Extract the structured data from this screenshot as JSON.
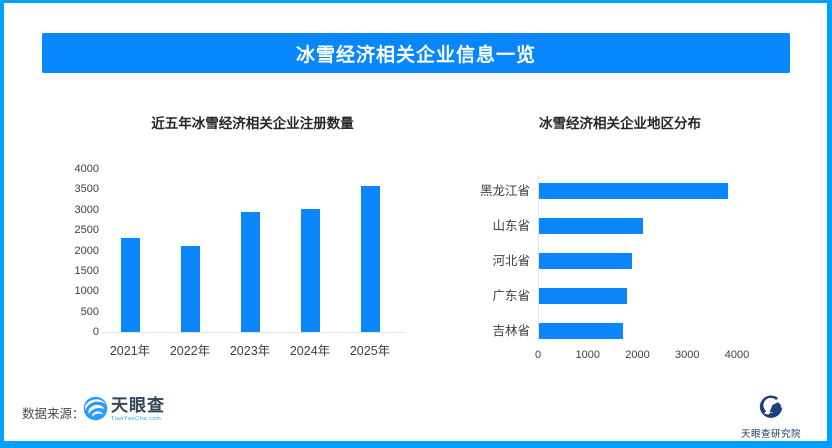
{
  "page": {
    "title": "冰雪经济相关企业信息一览"
  },
  "colors": {
    "border_blue": "#00a0fe",
    "banner_blue": "#0787fb",
    "bar_blue": "#0b87fb",
    "logo_navy": "#1f3864",
    "logo_slate": "#33475b",
    "logo_azure": "#2f9bf4"
  },
  "footer": {
    "source_label": "数据来源：",
    "logo_name": "天眼查",
    "logo_sub": "TianYanCha.com",
    "institute_name": "天眼查研究院"
  },
  "icons": {
    "tianyancha_eye_icon": "stylized blue eye swirl",
    "institute_swoosh_icon": "navy arc with mountain-house"
  },
  "chart_data": [
    {
      "type": "bar",
      "orientation": "vertical",
      "title": "近五年冰雪经济相关企业注册数量",
      "categories": [
        "2021年",
        "2022年",
        "2023年",
        "2024年",
        "2025年"
      ],
      "values": [
        2300,
        2120,
        2950,
        3030,
        3590
      ],
      "xlabel": "",
      "ylabel": "",
      "ylim": [
        0,
        4000
      ],
      "yticks": [
        0,
        500,
        1000,
        1500,
        2000,
        2500,
        3000,
        3500,
        4000
      ],
      "grid": false,
      "legend": "none"
    },
    {
      "type": "bar",
      "orientation": "horizontal",
      "title": "冰雪经济相关企业地区分布",
      "categories": [
        "黑龙江省",
        "山东省",
        "河北省",
        "广东省",
        "吉林省"
      ],
      "values": [
        3800,
        2100,
        1870,
        1760,
        1690
      ],
      "xlabel": "",
      "ylabel": "",
      "xlim": [
        0,
        4000
      ],
      "xticks": [
        0,
        1000,
        2000,
        3000,
        4000
      ],
      "grid": false,
      "legend": "none"
    }
  ]
}
